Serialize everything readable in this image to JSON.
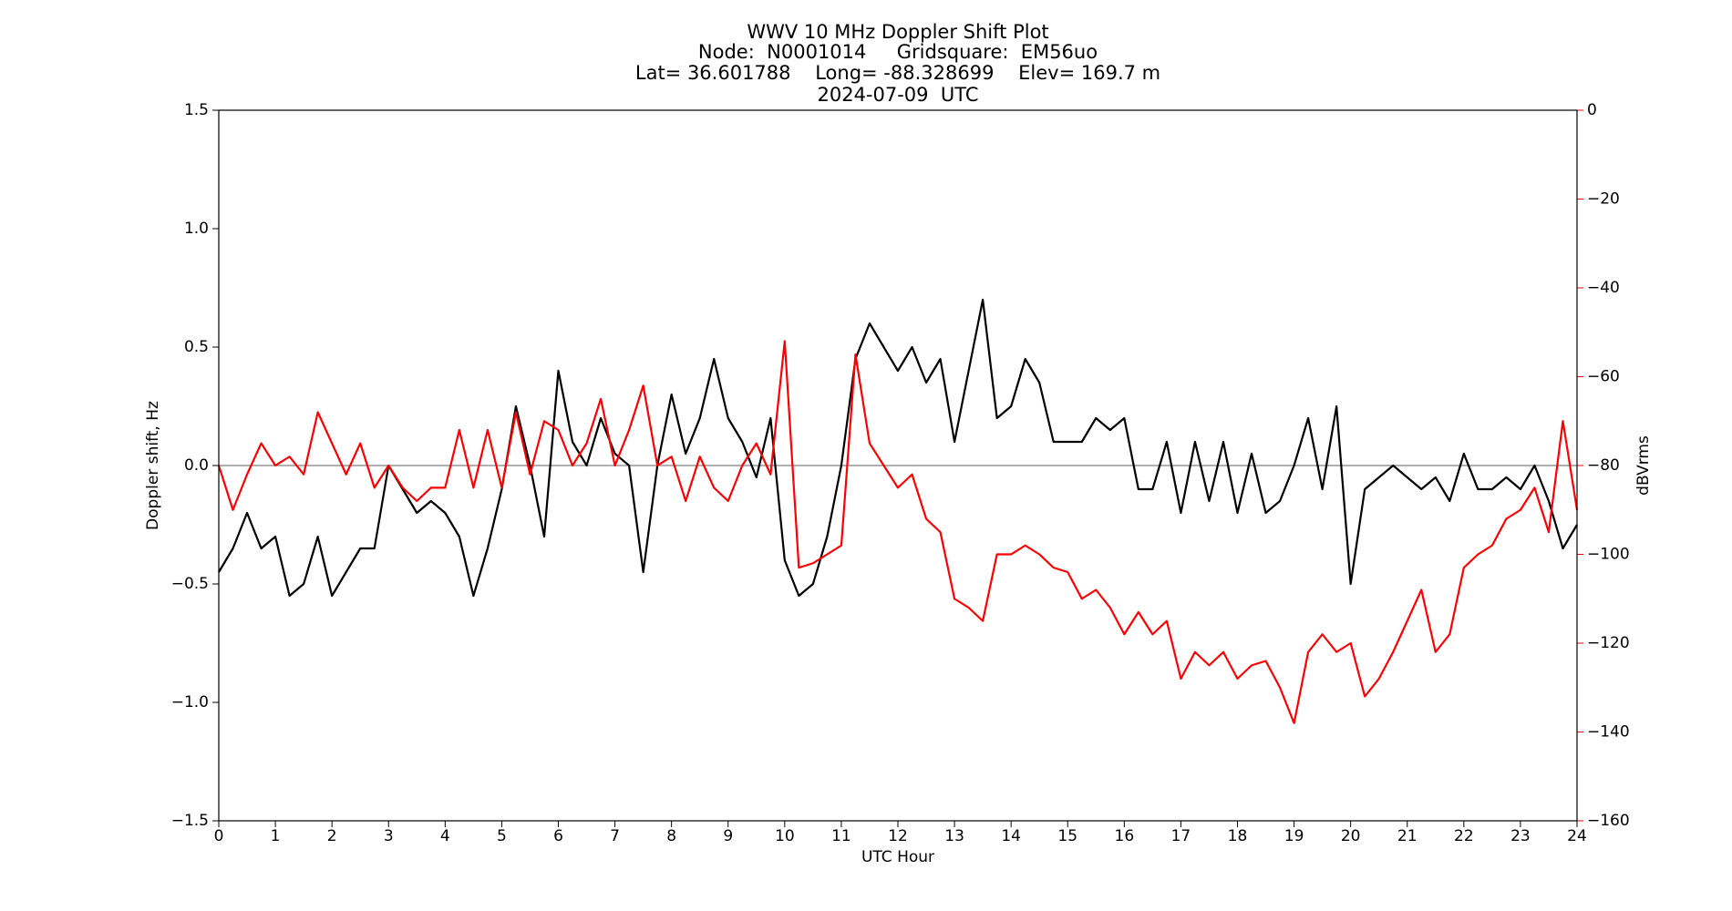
{
  "chart_data": {
    "type": "line",
    "title": "WWV 10 MHz Doppler Shift Plot",
    "subtitle": [
      "Node:  N0001014     Gridsquare:  EM56uo",
      "Lat= 36.601788    Long= -88.328699    Elev= 169.7 m",
      "2024-07-09  UTC"
    ],
    "xlabel": "UTC Hour",
    "ylabel": "Doppler shift, Hz",
    "y2label": "dBVrms",
    "y2color": "#ff0000",
    "x": [
      0,
      0.25,
      0.5,
      0.75,
      1,
      1.25,
      1.5,
      1.75,
      2,
      2.25,
      2.5,
      2.75,
      3,
      3.25,
      3.5,
      3.75,
      4,
      4.25,
      4.5,
      4.75,
      5,
      5.25,
      5.5,
      5.75,
      6,
      6.25,
      6.5,
      6.75,
      7,
      7.25,
      7.5,
      7.75,
      8,
      8.25,
      8.5,
      8.75,
      9,
      9.25,
      9.5,
      9.75,
      10,
      10.25,
      10.5,
      10.75,
      11,
      11.25,
      11.5,
      11.75,
      12,
      12.25,
      12.5,
      12.75,
      13,
      13.25,
      13.5,
      13.75,
      14,
      14.25,
      14.5,
      14.75,
      15,
      15.25,
      15.5,
      15.75,
      16,
      16.25,
      16.5,
      16.75,
      17,
      17.25,
      17.5,
      17.75,
      18,
      18.25,
      18.5,
      18.75,
      19,
      19.25,
      19.5,
      19.75,
      20,
      20.25,
      20.5,
      20.75,
      21,
      21.25,
      21.5,
      21.75,
      22,
      22.25,
      22.5,
      22.75,
      23,
      23.25,
      23.5,
      23.75,
      24
    ],
    "series": [
      {
        "name": "Doppler shift",
        "color": "#000000",
        "values": [
          -0.45,
          -0.35,
          -0.2,
          -0.35,
          -0.3,
          -0.55,
          -0.5,
          -0.3,
          -0.55,
          -0.45,
          -0.35,
          -0.35,
          0.0,
          -0.1,
          -0.2,
          -0.15,
          -0.2,
          -0.3,
          -0.55,
          -0.35,
          -0.1,
          0.25,
          0.0,
          -0.3,
          0.4,
          0.1,
          0.0,
          0.2,
          0.05,
          0.0,
          -0.45,
          0.0,
          0.3,
          0.05,
          0.2,
          0.45,
          0.2,
          0.1,
          -0.05,
          0.2,
          -0.4,
          -0.55,
          -0.5,
          -0.3,
          0.0,
          0.45,
          0.6,
          0.5,
          0.4,
          0.5,
          0.35,
          0.45,
          0.1,
          0.4,
          0.7,
          0.2,
          0.25,
          0.45,
          0.35,
          0.1,
          0.1,
          0.1,
          0.2,
          0.15,
          0.2,
          -0.1,
          -0.1,
          0.1,
          -0.2,
          0.1,
          -0.15,
          0.1,
          -0.2,
          0.05,
          -0.2,
          -0.15,
          0.0,
          0.2,
          -0.1,
          0.25,
          -0.5,
          -0.1,
          -0.05,
          0.0,
          -0.05,
          -0.1,
          -0.05,
          -0.15,
          0.05,
          -0.1,
          -0.1,
          -0.05,
          -0.1,
          0.0,
          -0.15,
          -0.35,
          -0.25
        ]
      },
      {
        "name": "dBVrms",
        "color": "#ff0000",
        "axis": "y2",
        "values": [
          -80,
          -90,
          -82,
          -75,
          -80,
          -78,
          -82,
          -68,
          -75,
          -82,
          -75,
          -85,
          -80,
          -85,
          -88,
          -85,
          -85,
          -72,
          -85,
          -72,
          -85,
          -68,
          -82,
          -70,
          -72,
          -80,
          -75,
          -65,
          -80,
          -72,
          -62,
          -80,
          -78,
          -88,
          -78,
          -85,
          -88,
          -80,
          -75,
          -82,
          -52,
          -103,
          -102,
          -100,
          -98,
          -55,
          -75,
          -80,
          -85,
          -82,
          -92,
          -95,
          -110,
          -112,
          -115,
          -100,
          -100,
          -98,
          -100,
          -103,
          -104,
          -110,
          -108,
          -112,
          -118,
          -113,
          -118,
          -115,
          -128,
          -122,
          -125,
          -122,
          -128,
          -125,
          -124,
          -130,
          -138,
          -122,
          -118,
          -122,
          -120,
          -132,
          -128,
          -122,
          -115,
          -108,
          -122,
          -118,
          -103,
          -100,
          -98,
          -92,
          -90,
          -85,
          -95,
          -70,
          -90
        ]
      }
    ],
    "xlim": [
      0,
      24
    ],
    "xticks": [
      0,
      1,
      2,
      3,
      4,
      5,
      6,
      7,
      8,
      9,
      10,
      11,
      12,
      13,
      14,
      15,
      16,
      17,
      18,
      19,
      20,
      21,
      22,
      23,
      24
    ],
    "ylim": [
      -1.5,
      1.5
    ],
    "yticks": [
      {
        "value": -1.5,
        "label": "−1.5"
      },
      {
        "value": -1,
        "label": "−1.0"
      },
      {
        "value": -0.5,
        "label": "−0.5"
      },
      {
        "value": 0,
        "label": "0.0"
      },
      0.5,
      {
        "value": 1,
        "label": "1.0"
      },
      1.5
    ],
    "y2lim": [
      -160,
      0
    ],
    "y2ticks": [
      {
        "value": -160,
        "label": "−160"
      },
      {
        "value": -140,
        "label": "−140"
      },
      {
        "value": -120,
        "label": "−120"
      },
      {
        "value": -100,
        "label": "−100"
      },
      {
        "value": -80,
        "label": "−80"
      },
      {
        "value": -60,
        "label": "−60"
      },
      {
        "value": -40,
        "label": "−40"
      },
      {
        "value": -20,
        "label": "−20"
      },
      0
    ],
    "reference_line": 0,
    "reference_color": "#808080",
    "grid": false
  }
}
